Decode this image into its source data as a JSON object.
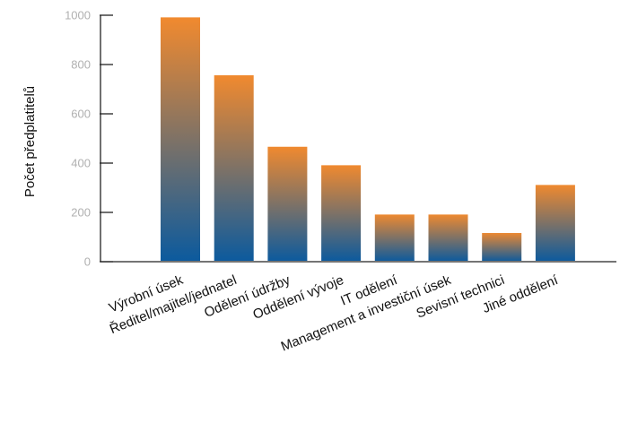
{
  "chart_data": {
    "type": "bar",
    "title": "",
    "xlabel": "",
    "ylabel": "Počet předplatitelů",
    "ylim": [
      0,
      1000
    ],
    "yticks": [
      0,
      200,
      400,
      600,
      800,
      1000
    ],
    "grid": false,
    "categories": [
      "Výrobní úsek",
      "Ředitel/majitel/jednatel",
      "Odělení údržby",
      "Oddělení vývoje",
      "IT odělení",
      "Management a investiční úsek",
      "Sevisní technici",
      "Jiné oddělení"
    ],
    "values": [
      995,
      760,
      470,
      395,
      195,
      195,
      120,
      315
    ],
    "colors": {
      "bar_top": "#f28a2e",
      "bar_bottom": "#0b5a9e"
    }
  }
}
